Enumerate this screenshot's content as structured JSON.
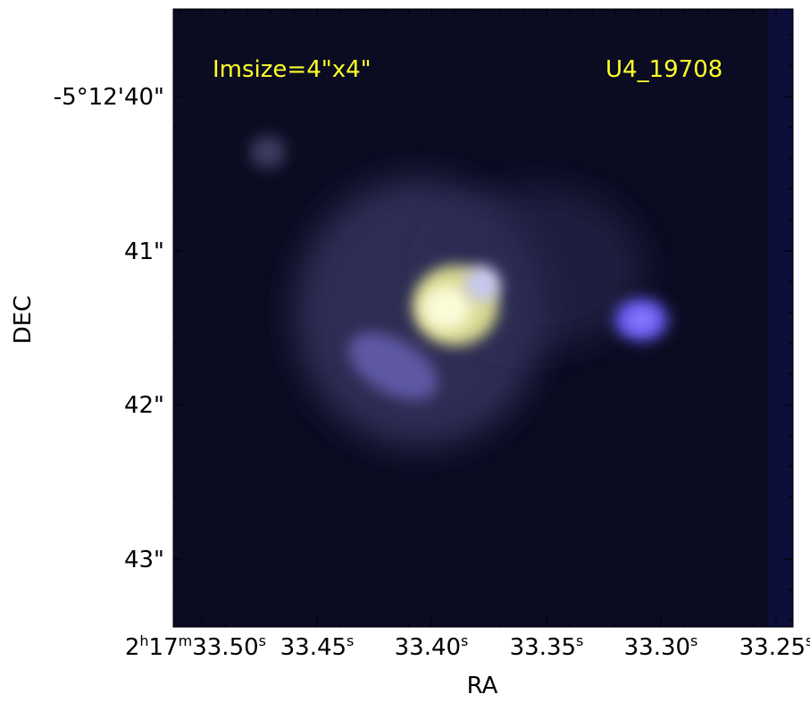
{
  "image": {
    "annotations": {
      "left": "Imsize=4\"x4\"",
      "right": "U4_19708"
    },
    "x_axis": {
      "label": "RA",
      "ticks": [
        [
          "2",
          "h",
          "17",
          "m",
          "33.50",
          "s"
        ],
        [
          "33.45",
          "s"
        ],
        [
          "33.40",
          "s"
        ],
        [
          "33.35",
          "s"
        ],
        [
          "33.30",
          "s"
        ],
        [
          "33.25",
          "s"
        ]
      ]
    },
    "y_axis": {
      "label": "DEC",
      "ticks": [
        "-5°12'40\"",
        "41\"",
        "42\"",
        "43\""
      ]
    }
  }
}
